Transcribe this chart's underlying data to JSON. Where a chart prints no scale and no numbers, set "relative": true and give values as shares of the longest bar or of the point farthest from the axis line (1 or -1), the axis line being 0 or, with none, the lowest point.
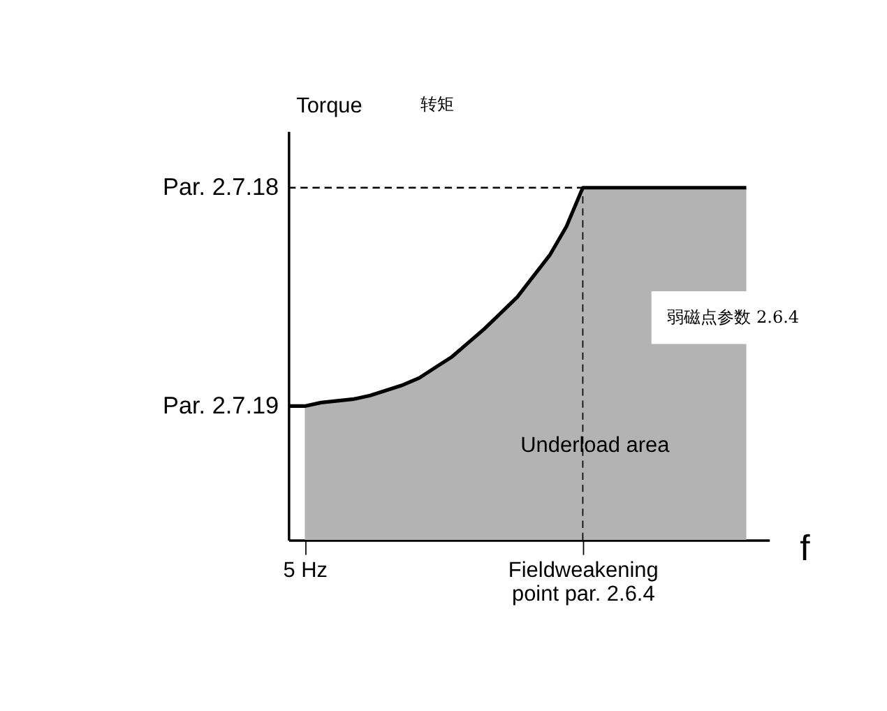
{
  "chart_data": {
    "type": "area",
    "relative": true,
    "xlabel": "f",
    "ylabel": "Torque",
    "categories": [
      null,
      "5 Hz",
      null,
      null,
      null,
      null,
      null,
      null,
      null,
      null,
      null,
      null,
      null,
      null,
      null,
      null,
      null,
      null,
      "Fieldweakening\npoint par. 2.6.4",
      null,
      null,
      null,
      null,
      null,
      null,
      null,
      null,
      null,
      null
    ],
    "series": [
      {
        "color": "#b3b3b3",
        "values": [
          null,
          0.38,
          0.39,
          0.395,
          0.4,
          0.41,
          0.425,
          0.44,
          0.46,
          0.49,
          0.52,
          0.56,
          0.6,
          0.645,
          0.69,
          0.75,
          0.81,
          0.89,
          1,
          1,
          1,
          1,
          1,
          1,
          1,
          1,
          1,
          1,
          1
        ]
      },
      {
        "type": "line",
        "color": "#000000",
        "values": [
          0.38,
          0.38,
          0.39,
          0.395,
          0.4,
          0.41,
          0.425,
          0.44,
          0.46,
          0.49,
          0.52,
          0.56,
          0.6,
          0.645,
          0.69,
          0.75,
          0.81,
          0.89,
          1,
          1,
          1,
          1,
          1,
          1,
          1,
          1,
          1,
          1,
          1
        ]
      }
    ],
    "ref_lines": [
      {
        "axis": "y",
        "value": 1,
        "label": "Par. 2.7.18",
        "line_style": "dashed",
        "color": "#000000"
      },
      {
        "axis": "x",
        "value": "Fieldweakening\npoint par. 2.6.4",
        "line_style": "dashed",
        "color": "#000000"
      }
    ],
    "annotations": [
      "Par. 2.7.19",
      "转矩",
      "Underload area",
      "弱磁点参数 2.6.4"
    ],
    "marker": "none"
  }
}
